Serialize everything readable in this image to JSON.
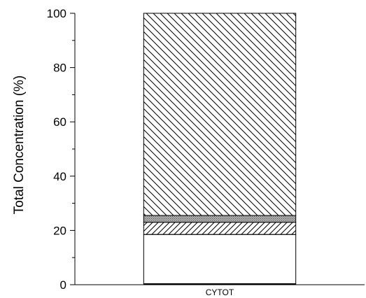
{
  "chart_data": {
    "type": "bar",
    "stacked": true,
    "categories": [
      "CYTOT"
    ],
    "ylabel": "Total Concentration (%)",
    "ylim": [
      0,
      100
    ],
    "yticks": [
      0,
      20,
      40,
      60,
      80,
      100
    ],
    "grid": false,
    "series": [
      {
        "values": [
          18.5
        ],
        "fill": "#ffffff",
        "pattern": "none"
      },
      {
        "values": [
          4.5
        ],
        "fill": "#ffffff",
        "pattern": "hatch-forward"
      },
      {
        "values": [
          2.5
        ],
        "fill": "#9a9a9a",
        "pattern": "stipple"
      },
      {
        "values": [
          74.5
        ],
        "fill": "#ffffff",
        "pattern": "hatch-back"
      }
    ]
  }
}
